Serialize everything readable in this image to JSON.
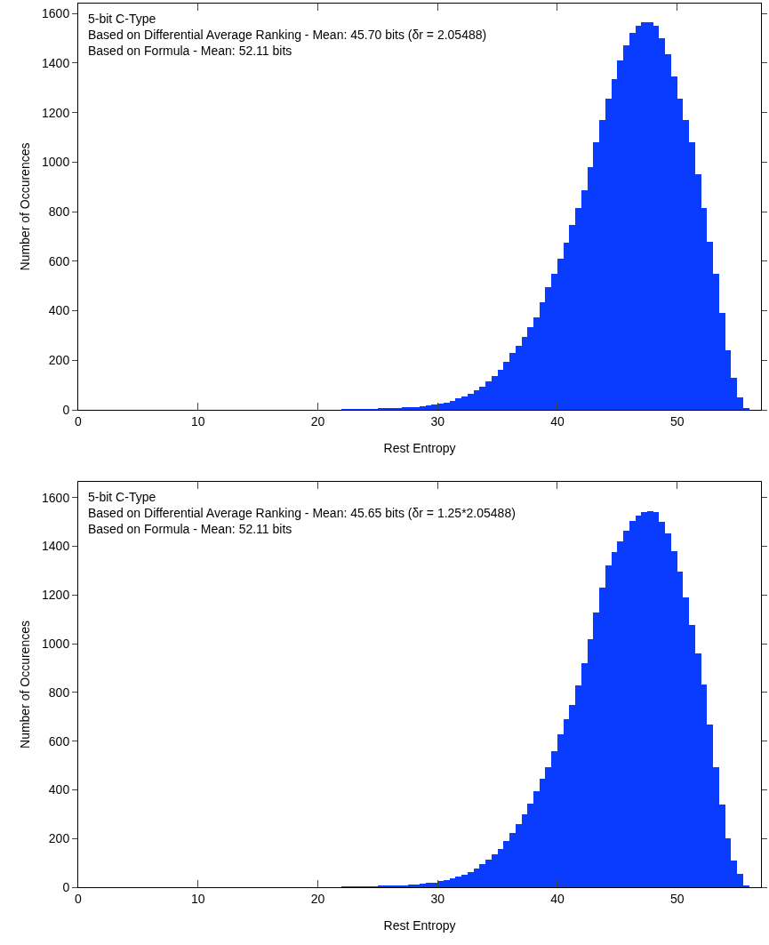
{
  "chart_data": [
    {
      "type": "histogram",
      "xlabel": "Rest Entropy",
      "ylabel": "Number of Occurences",
      "color": "#0a3cff",
      "annotations": [
        "5-bit C-Type",
        "Based on Differential Average Ranking - Mean: 45.70 bits (δr = 2.05488)",
        "Based on Formula - Mean: 52.11 bits"
      ],
      "bins": [
        22,
        22.5,
        23,
        23.5,
        24,
        24.5,
        25,
        25.5,
        26,
        26.5,
        27,
        27.5,
        28,
        28.5,
        29,
        29.5,
        30,
        30.5,
        31,
        31.5,
        32,
        32.5,
        33,
        33.5,
        34,
        34.5,
        35,
        35.5,
        36,
        36.5,
        37,
        37.5,
        38,
        38.5,
        39,
        39.5,
        40,
        40.5,
        41,
        41.5,
        42,
        42.5,
        43,
        43.5,
        44,
        44.5,
        45,
        45.5,
        46,
        46.5,
        47,
        47.5,
        48,
        48.5,
        49,
        49.5,
        50,
        50.5,
        51,
        51.5,
        52,
        52.5,
        53,
        53.5,
        54,
        54.5,
        55,
        55.5,
        56
      ],
      "values": [
        1,
        1,
        2,
        2,
        3,
        3,
        4,
        5,
        6,
        7,
        9,
        10,
        12,
        14,
        17,
        20,
        24,
        30,
        37,
        45,
        55,
        65,
        80,
        95,
        115,
        135,
        160,
        195,
        230,
        260,
        295,
        335,
        375,
        435,
        495,
        550,
        610,
        675,
        745,
        815,
        885,
        980,
        1080,
        1170,
        1255,
        1335,
        1410,
        1470,
        1520,
        1550,
        1565,
        1565,
        1550,
        1500,
        1435,
        1345,
        1255,
        1170,
        1080,
        950,
        815,
        680,
        550,
        390,
        240,
        130,
        50,
        8
      ],
      "xlim": [
        0,
        57
      ],
      "xticks": [
        0,
        10,
        20,
        30,
        40,
        50
      ],
      "ylim": [
        0,
        1640
      ],
      "yticks": [
        0,
        200,
        400,
        600,
        800,
        1000,
        1200,
        1400,
        1600
      ]
    },
    {
      "type": "histogram",
      "xlabel": "Rest Entropy",
      "ylabel": "Number of Occurences",
      "color": "#0a3cff",
      "annotations": [
        "5-bit C-Type",
        "Based on Differential Average Ranking - Mean: 45.65 bits (δr = 1.25*2.05488)",
        "Based on Formula - Mean: 52.11 bits"
      ],
      "bins": [
        22,
        22.5,
        23,
        23.5,
        24,
        24.5,
        25,
        25.5,
        26,
        26.5,
        27,
        27.5,
        28,
        28.5,
        29,
        29.5,
        30,
        30.5,
        31,
        31.5,
        32,
        32.5,
        33,
        33.5,
        34,
        34.5,
        35,
        35.5,
        36,
        36.5,
        37,
        37.5,
        38,
        38.5,
        39,
        39.5,
        40,
        40.5,
        41,
        41.5,
        42,
        42.5,
        43,
        43.5,
        44,
        44.5,
        45,
        45.5,
        46,
        46.5,
        47,
        47.5,
        48,
        48.5,
        49,
        49.5,
        50,
        50.5,
        51,
        51.5,
        52,
        52.5,
        53,
        53.5,
        54,
        54.5,
        55,
        55.5,
        56
      ],
      "values": [
        1,
        1,
        2,
        2,
        3,
        3,
        4,
        5,
        6,
        7,
        9,
        10,
        12,
        14,
        17,
        20,
        24,
        30,
        36,
        43,
        50,
        62,
        78,
        95,
        115,
        135,
        157,
        190,
        224,
        260,
        298,
        345,
        395,
        445,
        493,
        560,
        627,
        690,
        749,
        830,
        920,
        1020,
        1127,
        1230,
        1322,
        1375,
        1420,
        1465,
        1505,
        1525,
        1540,
        1545,
        1540,
        1500,
        1455,
        1380,
        1295,
        1190,
        1078,
        960,
        834,
        670,
        493,
        340,
        200,
        110,
        54,
        8
      ],
      "xlim": [
        0,
        57
      ],
      "xticks": [
        0,
        10,
        20,
        30,
        40,
        50
      ],
      "ylim": [
        0,
        1665
      ],
      "yticks": [
        0,
        200,
        400,
        600,
        800,
        1000,
        1200,
        1400,
        1600
      ]
    }
  ]
}
